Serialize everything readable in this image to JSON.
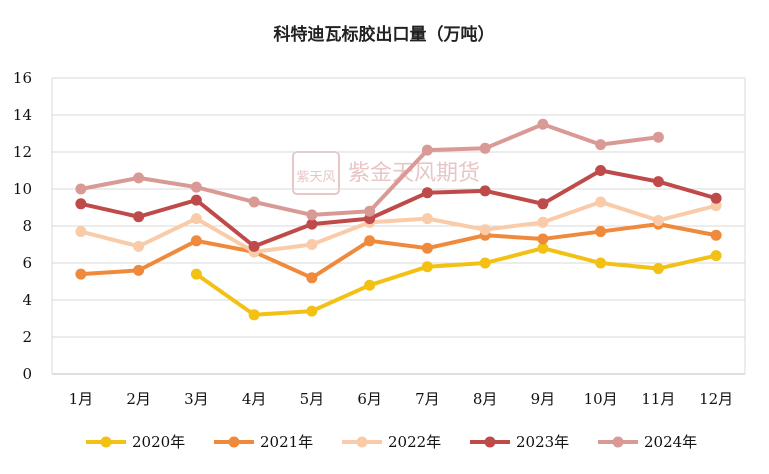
{
  "chart_data": {
    "type": "line",
    "title": "科特迪瓦标胶出口量（万吨）",
    "xlabel": "",
    "ylabel": "",
    "categories": [
      "1月",
      "2月",
      "3月",
      "4月",
      "5月",
      "6月",
      "7月",
      "8月",
      "9月",
      "10月",
      "11月",
      "12月"
    ],
    "ylim": [
      0,
      16
    ],
    "yticks": [
      0,
      2,
      4,
      6,
      8,
      10,
      12,
      14,
      16
    ],
    "grid": "y",
    "legend_position": "bottom",
    "series": [
      {
        "name": "2020年",
        "color": "#f2c114",
        "values": [
          null,
          null,
          5.4,
          3.2,
          3.4,
          4.8,
          5.8,
          6.0,
          6.8,
          6.0,
          5.7,
          6.4
        ]
      },
      {
        "name": "2021年",
        "color": "#ef8a3c",
        "values": [
          5.4,
          5.6,
          7.2,
          6.6,
          5.2,
          7.2,
          6.8,
          7.5,
          7.3,
          7.7,
          8.1,
          7.5
        ]
      },
      {
        "name": "2022年",
        "color": "#f9cba8",
        "values": [
          7.7,
          6.9,
          8.4,
          6.6,
          7.0,
          8.2,
          8.4,
          7.8,
          8.2,
          9.3,
          8.3,
          9.1
        ]
      },
      {
        "name": "2023年",
        "color": "#bf4a4a",
        "values": [
          9.2,
          8.5,
          9.4,
          6.9,
          8.1,
          8.4,
          9.8,
          9.9,
          9.2,
          11.0,
          10.4,
          9.5
        ]
      },
      {
        "name": "2024年",
        "color": "#d99a96",
        "values": [
          10.0,
          10.6,
          10.1,
          9.3,
          8.6,
          8.8,
          12.1,
          12.2,
          13.5,
          12.4,
          12.8,
          null
        ]
      }
    ]
  },
  "watermark": {
    "seal": "紫天风",
    "text": "紫金天风期货"
  }
}
